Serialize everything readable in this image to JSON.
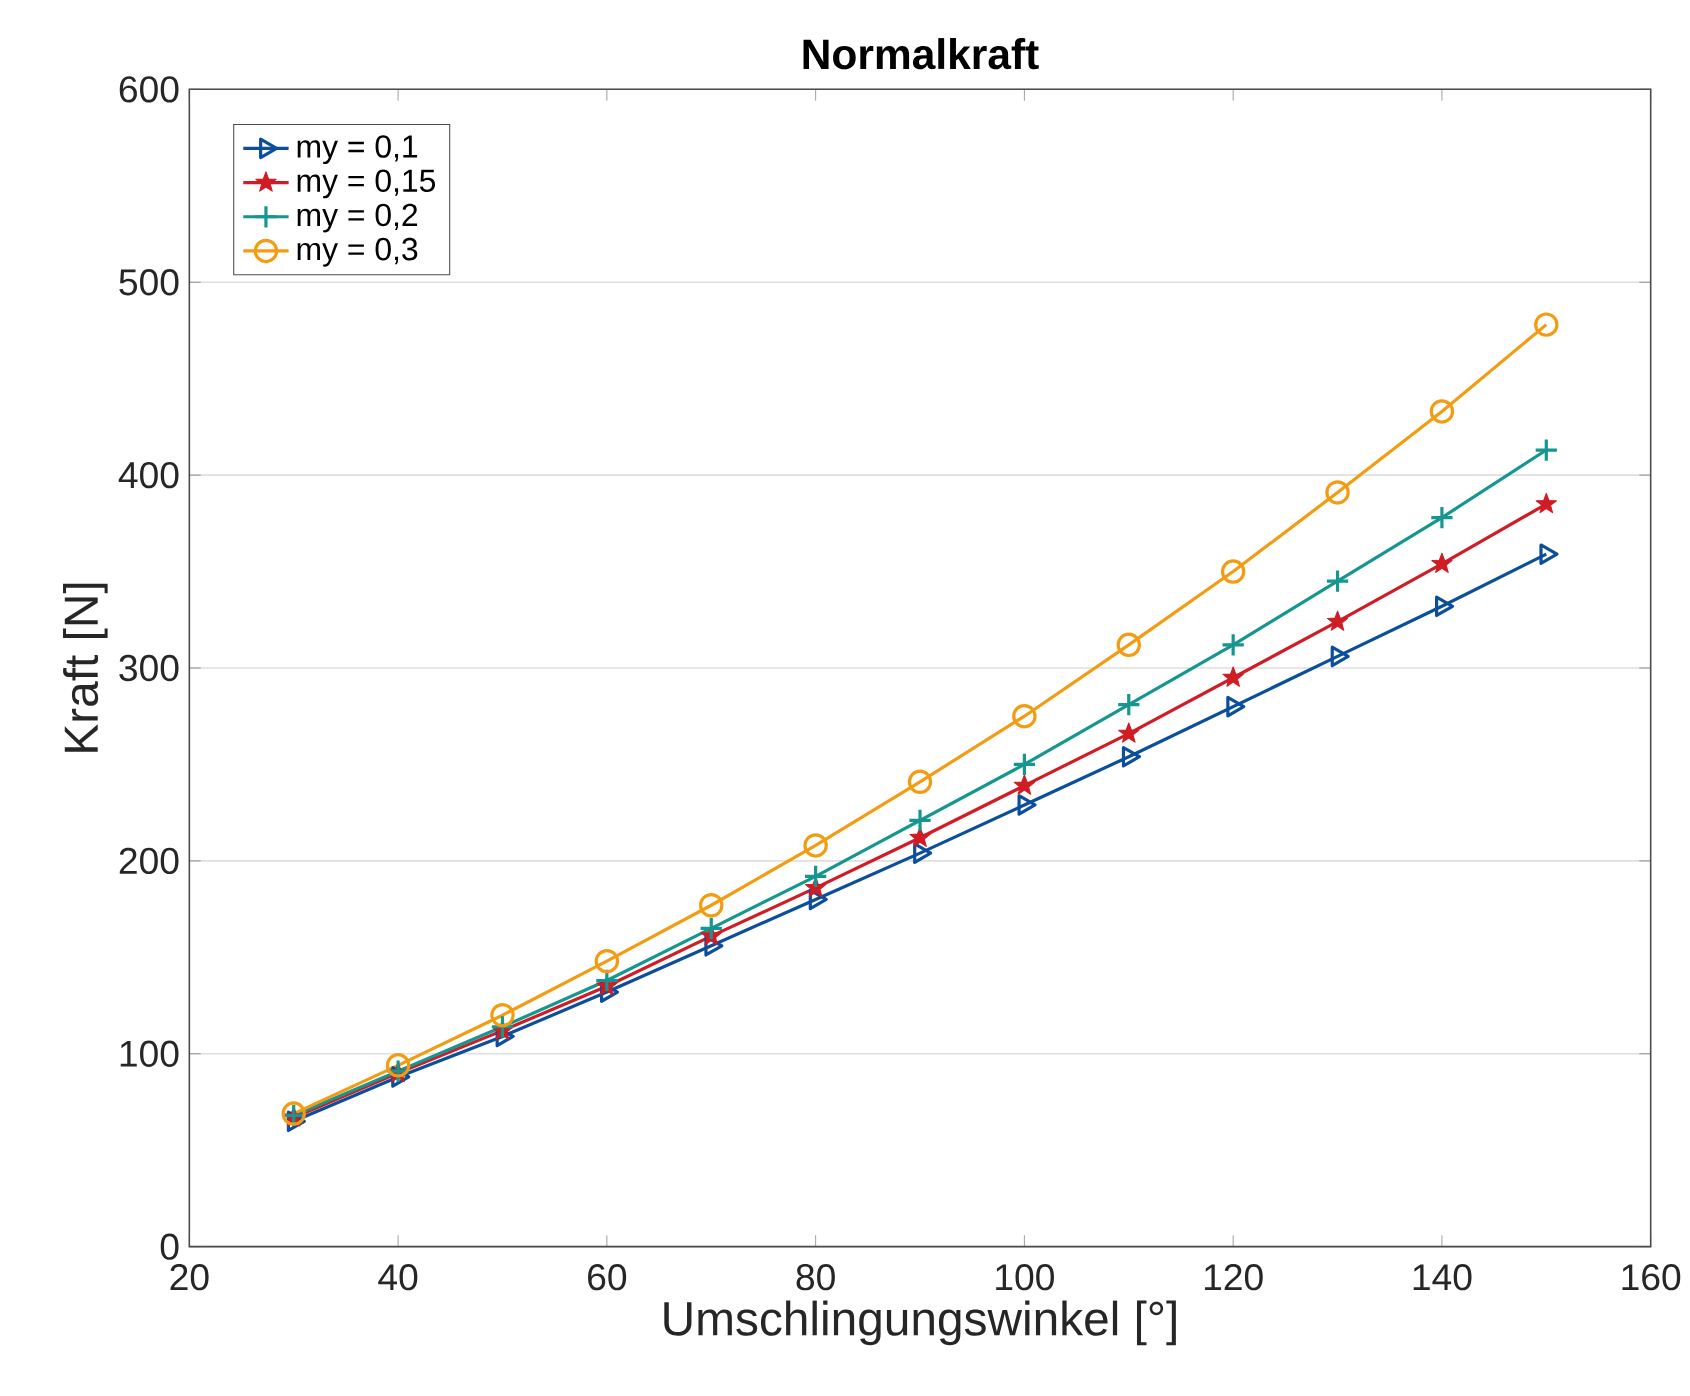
{
  "chart_data": {
    "type": "line",
    "title": "Normalkraft",
    "xlabel": "Umschlingungswinkel [°]",
    "ylabel": "Kraft [N]",
    "x": [
      30,
      40,
      50,
      60,
      70,
      80,
      90,
      100,
      110,
      120,
      130,
      140,
      150
    ],
    "series": [
      {
        "name": "my = 0,1",
        "color": "#0b4f9c",
        "marker": "triangle",
        "values": [
          65,
          88,
          109,
          132,
          156,
          180,
          204,
          229,
          254,
          280,
          306,
          332,
          359
        ]
      },
      {
        "name": "my = 0,15",
        "color": "#d01c24",
        "marker": "star",
        "values": [
          67,
          90,
          112,
          135,
          161,
          186,
          212,
          239,
          266,
          295,
          324,
          354,
          385
        ]
      },
      {
        "name": "my = 0,2",
        "color": "#15968f",
        "marker": "cross",
        "values": [
          68,
          91,
          114,
          138,
          165,
          192,
          221,
          250,
          281,
          312,
          345,
          378,
          413
        ]
      },
      {
        "name": "my = 0,3",
        "color": "#f39c12",
        "marker": "circle",
        "values": [
          69,
          94,
          120,
          148,
          177,
          208,
          241,
          275,
          312,
          350,
          391,
          433,
          478
        ]
      }
    ],
    "xlim": [
      20,
      160
    ],
    "xticks": [
      20,
      40,
      60,
      80,
      100,
      120,
      140,
      160
    ],
    "ylim": [
      0,
      600
    ],
    "yticks": [
      0,
      100,
      200,
      300,
      400,
      500,
      600
    ],
    "grid": "y",
    "legend": "top left",
    "line_style": "solid"
  }
}
